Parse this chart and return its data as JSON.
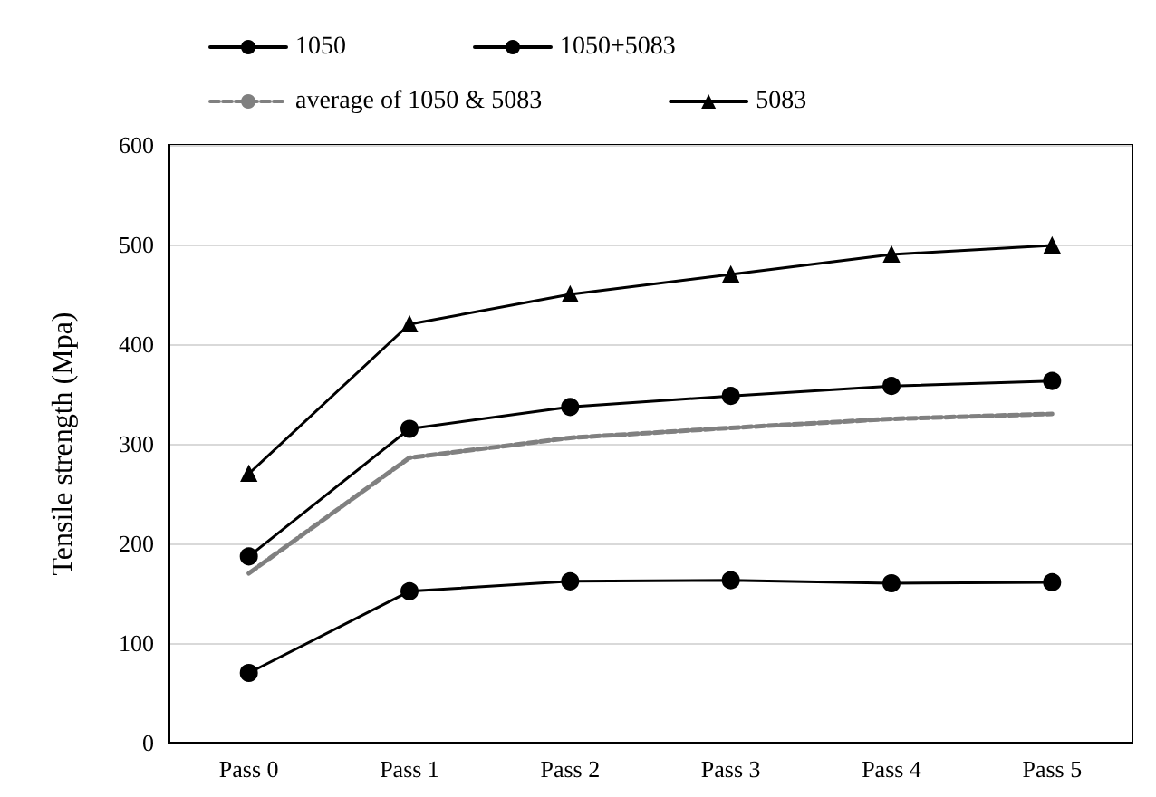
{
  "chart_data": {
    "type": "line",
    "ylabel": "Tensile strength (Mpa)",
    "categories": [
      "Pass 0",
      "Pass 1",
      "Pass 2",
      "Pass 3",
      "Pass 4",
      "Pass 5"
    ],
    "series": [
      {
        "name": "1050",
        "color": "#000000",
        "marker": "circle",
        "values": [
          70,
          152,
          162,
          163,
          160,
          161
        ]
      },
      {
        "name": "1050+5083",
        "color": "#000000",
        "marker": "circle",
        "values": [
          187,
          315,
          337,
          348,
          358,
          363
        ]
      },
      {
        "name": "average of 1050 & 5083",
        "color": "#808080",
        "marker": "none",
        "line_style": "dashed",
        "values": [
          170,
          286,
          306,
          316,
          325,
          330
        ]
      },
      {
        "name": "5083",
        "color": "#000000",
        "marker": "triangle",
        "values": [
          270,
          420,
          450,
          470,
          490,
          499
        ]
      }
    ],
    "ylim": [
      0,
      600
    ],
    "yticks": [
      0,
      100,
      200,
      300,
      400,
      500,
      600
    ],
    "grid": "y",
    "legend": "top"
  }
}
